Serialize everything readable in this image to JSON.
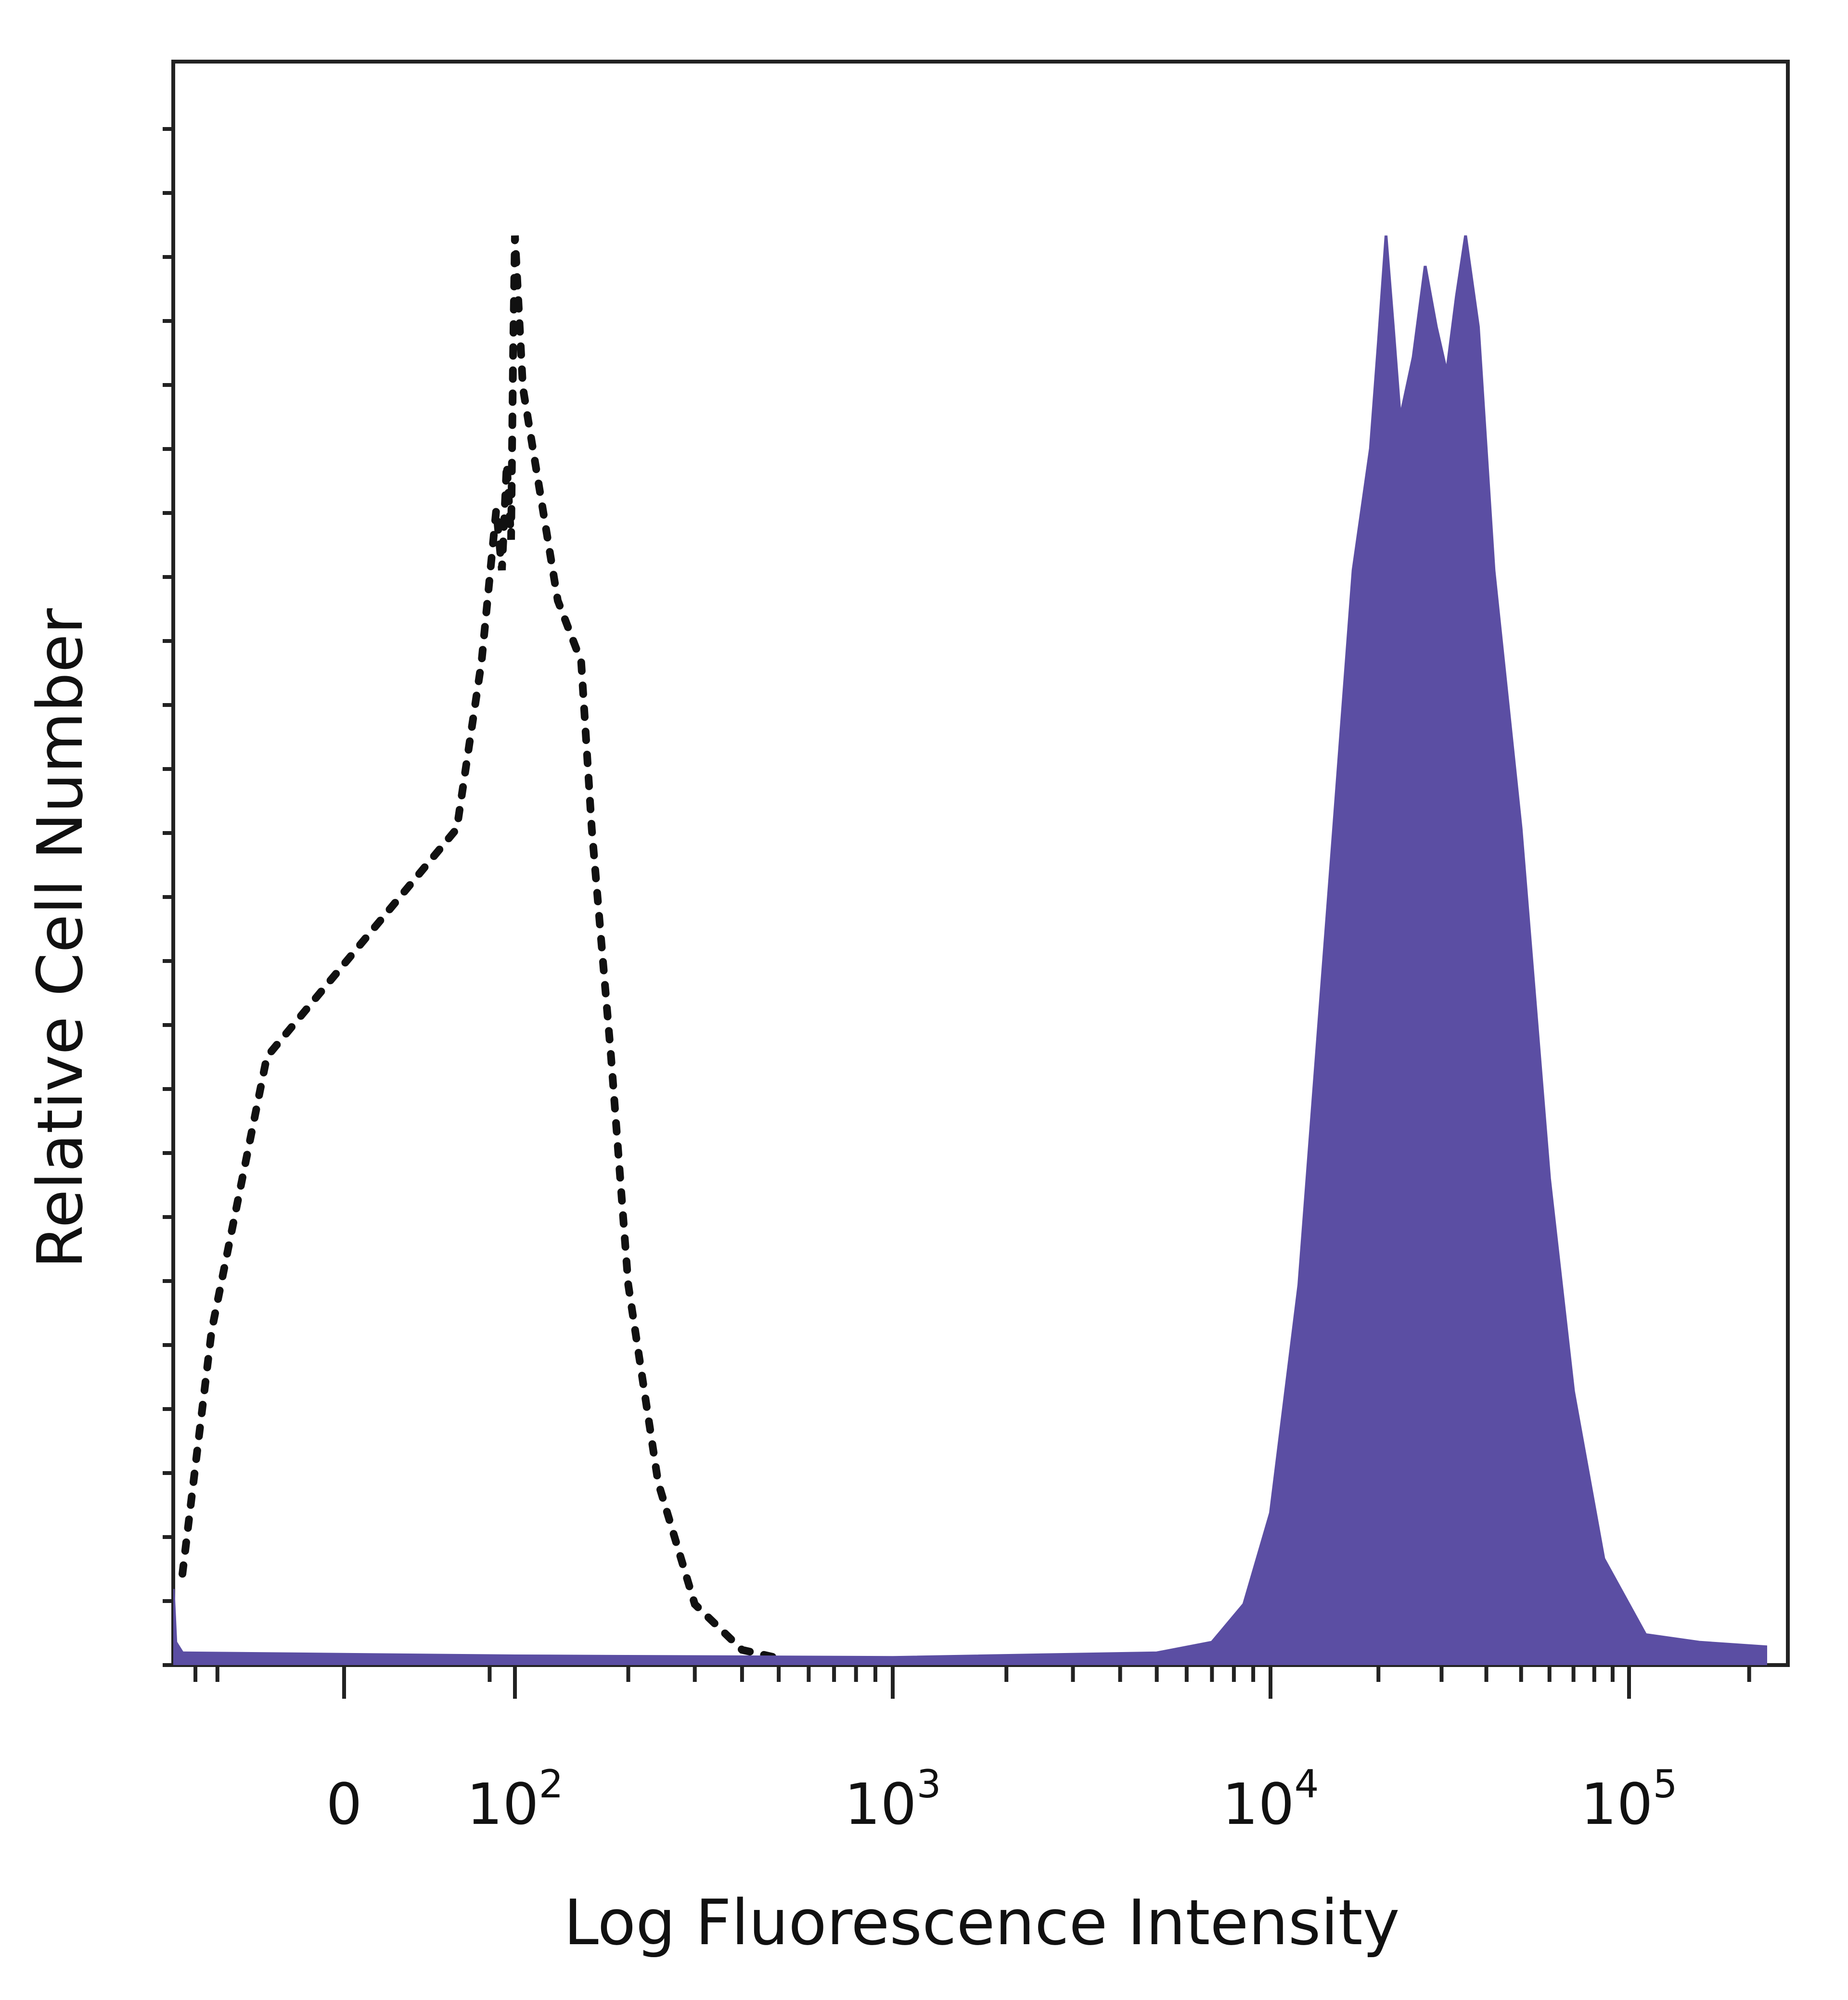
{
  "chart_data": {
    "type": "area",
    "title": "",
    "xlabel": "Log Fluorescence Intensity",
    "ylabel": "Relative Cell Number",
    "x_scale": "biexponential",
    "x_ticks": [
      {
        "value": 0,
        "base": "0",
        "exp": ""
      },
      {
        "value": 100,
        "base": "10",
        "exp": "2"
      },
      {
        "value": 1000,
        "base": "10",
        "exp": "3"
      },
      {
        "value": 10000,
        "base": "10",
        "exp": "4"
      },
      {
        "value": 100000,
        "base": "10",
        "exp": "5"
      }
    ],
    "xlim": [
      -200,
      250000
    ],
    "ylim": [
      0,
      100
    ],
    "grid": false,
    "series": [
      {
        "style": "dotted-outline",
        "color": "#111111",
        "points": [
          [
            -150,
            6
          ],
          [
            -60,
            22
          ],
          [
            -10,
            40
          ],
          [
            20,
            55
          ],
          [
            40,
            66
          ],
          [
            60,
            76
          ],
          [
            70,
            72
          ],
          [
            80,
            79
          ],
          [
            90,
            74
          ],
          [
            95,
            86
          ],
          [
            100,
            94
          ],
          [
            105,
            84
          ],
          [
            130,
            70
          ],
          [
            150,
            66
          ],
          [
            160,
            55
          ],
          [
            180,
            40
          ],
          [
            200,
            25
          ],
          [
            240,
            12
          ],
          [
            300,
            4
          ],
          [
            400,
            1
          ],
          [
            600,
            0
          ]
        ]
      },
      {
        "style": "filled",
        "color": "#5b4ea3",
        "points": [
          [
            -200,
            5
          ],
          [
            -185,
            1.5
          ],
          [
            -150,
            0.8
          ],
          [
            100,
            0.6
          ],
          [
            1000,
            0.5
          ],
          [
            5000,
            0.8
          ],
          [
            7000,
            1.5
          ],
          [
            8500,
            4
          ],
          [
            10000,
            10
          ],
          [
            12000,
            25
          ],
          [
            15000,
            55
          ],
          [
            17000,
            72
          ],
          [
            19000,
            80
          ],
          [
            20000,
            87
          ],
          [
            21000,
            94
          ],
          [
            22000,
            88
          ],
          [
            23000,
            82
          ],
          [
            25000,
            86
          ],
          [
            27000,
            92
          ],
          [
            29000,
            88
          ],
          [
            31000,
            85
          ],
          [
            33000,
            90
          ],
          [
            35000,
            94
          ],
          [
            38000,
            88
          ],
          [
            42000,
            72
          ],
          [
            50000,
            55
          ],
          [
            60000,
            32
          ],
          [
            70000,
            18
          ],
          [
            85000,
            7
          ],
          [
            110000,
            2
          ],
          [
            150000,
            1.5
          ],
          [
            220000,
            1.2
          ]
        ]
      }
    ]
  }
}
